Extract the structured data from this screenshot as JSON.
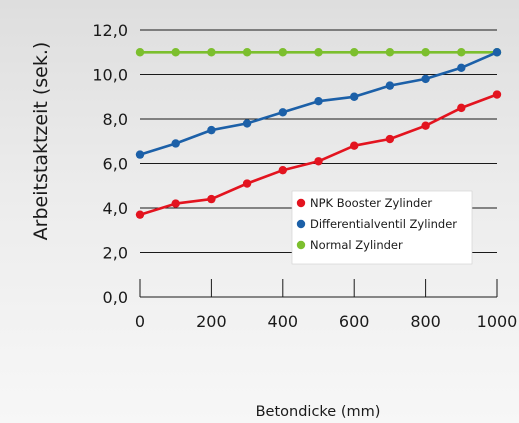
{
  "chart_data": {
    "type": "line",
    "title": "",
    "xlabel": "Betondicke (mm)",
    "ylabel": "Arbeitstaktzeit (sek.)",
    "x": [
      0,
      100,
      200,
      300,
      400,
      500,
      600,
      700,
      800,
      900,
      1000
    ],
    "x_tick_labels": [
      "0",
      "200",
      "400",
      "600",
      "800",
      "1000"
    ],
    "x_ticks": [
      0,
      200,
      400,
      600,
      800,
      1000
    ],
    "y_tick_labels": [
      "0,0",
      "2,0",
      "4,0",
      "6,0",
      "8,0",
      "10,0",
      "12,0"
    ],
    "y_ticks": [
      0,
      2,
      4,
      6,
      8,
      10,
      12
    ],
    "xlim": [
      0,
      1000
    ],
    "ylim": [
      0,
      12
    ],
    "grid": "horizontal",
    "legend_position": "bottom-right",
    "series": [
      {
        "name": "NPK Booster Zylinder",
        "color": "#e3141f",
        "values": [
          3.7,
          4.2,
          4.4,
          5.1,
          5.7,
          6.1,
          6.8,
          7.1,
          7.7,
          8.5,
          9.1
        ]
      },
      {
        "name": "Differentialventil Zylinder",
        "color": "#1c60a8",
        "values": [
          6.4,
          6.9,
          7.5,
          7.8,
          8.3,
          8.8,
          9.0,
          9.5,
          9.8,
          10.3,
          11.0
        ]
      },
      {
        "name": "Normal Zylinder",
        "color": "#7cbf2e",
        "values": [
          11.0,
          11.0,
          11.0,
          11.0,
          11.0,
          11.0,
          11.0,
          11.0,
          11.0,
          11.0,
          11.0
        ]
      }
    ]
  }
}
